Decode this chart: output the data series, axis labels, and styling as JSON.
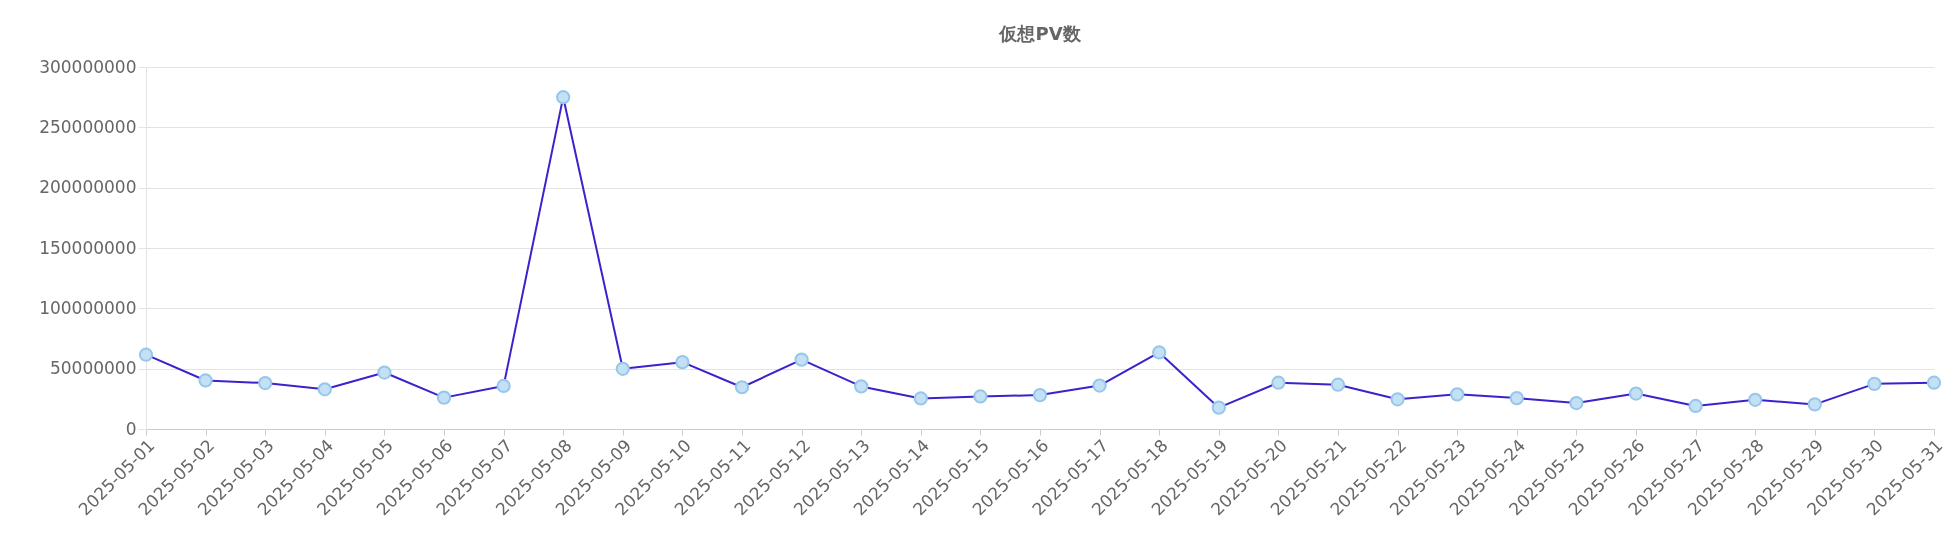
{
  "chart_data": {
    "type": "line",
    "title": "仮想PV数",
    "categories": [
      "2025-05-01",
      "2025-05-02",
      "2025-05-03",
      "2025-05-04",
      "2025-05-05",
      "2025-05-06",
      "2025-05-07",
      "2025-05-08",
      "2025-05-09",
      "2025-05-10",
      "2025-05-11",
      "2025-05-12",
      "2025-05-13",
      "2025-05-14",
      "2025-05-15",
      "2025-05-16",
      "2025-05-17",
      "2025-05-18",
      "2025-05-19",
      "2025-05-20",
      "2025-05-21",
      "2025-05-22",
      "2025-05-23",
      "2025-05-24",
      "2025-05-25",
      "2025-05-26",
      "2025-05-27",
      "2025-05-28",
      "2025-05-29",
      "2025-05-30",
      "2025-05-31"
    ],
    "series": [
      {
        "color": "#3a22cc",
        "values": [
          61600000,
          40200000,
          38100000,
          32900000,
          46800000,
          26000000,
          35700000,
          275000000,
          49900000,
          55400000,
          34600000,
          57500000,
          35300000,
          25300000,
          27000000,
          28100000,
          36000000,
          63400000,
          17700000,
          38400000,
          36700000,
          24600000,
          28700000,
          25600000,
          21500000,
          29400000,
          19100000,
          24200000,
          20400000,
          37400000,
          38400000
        ]
      }
    ],
    "ylim": [
      0,
      300000000
    ],
    "yticks": [
      0,
      50000000,
      100000000,
      150000000,
      200000000,
      250000000,
      300000000
    ],
    "grid": "y",
    "marker": "circle",
    "legend": false
  }
}
